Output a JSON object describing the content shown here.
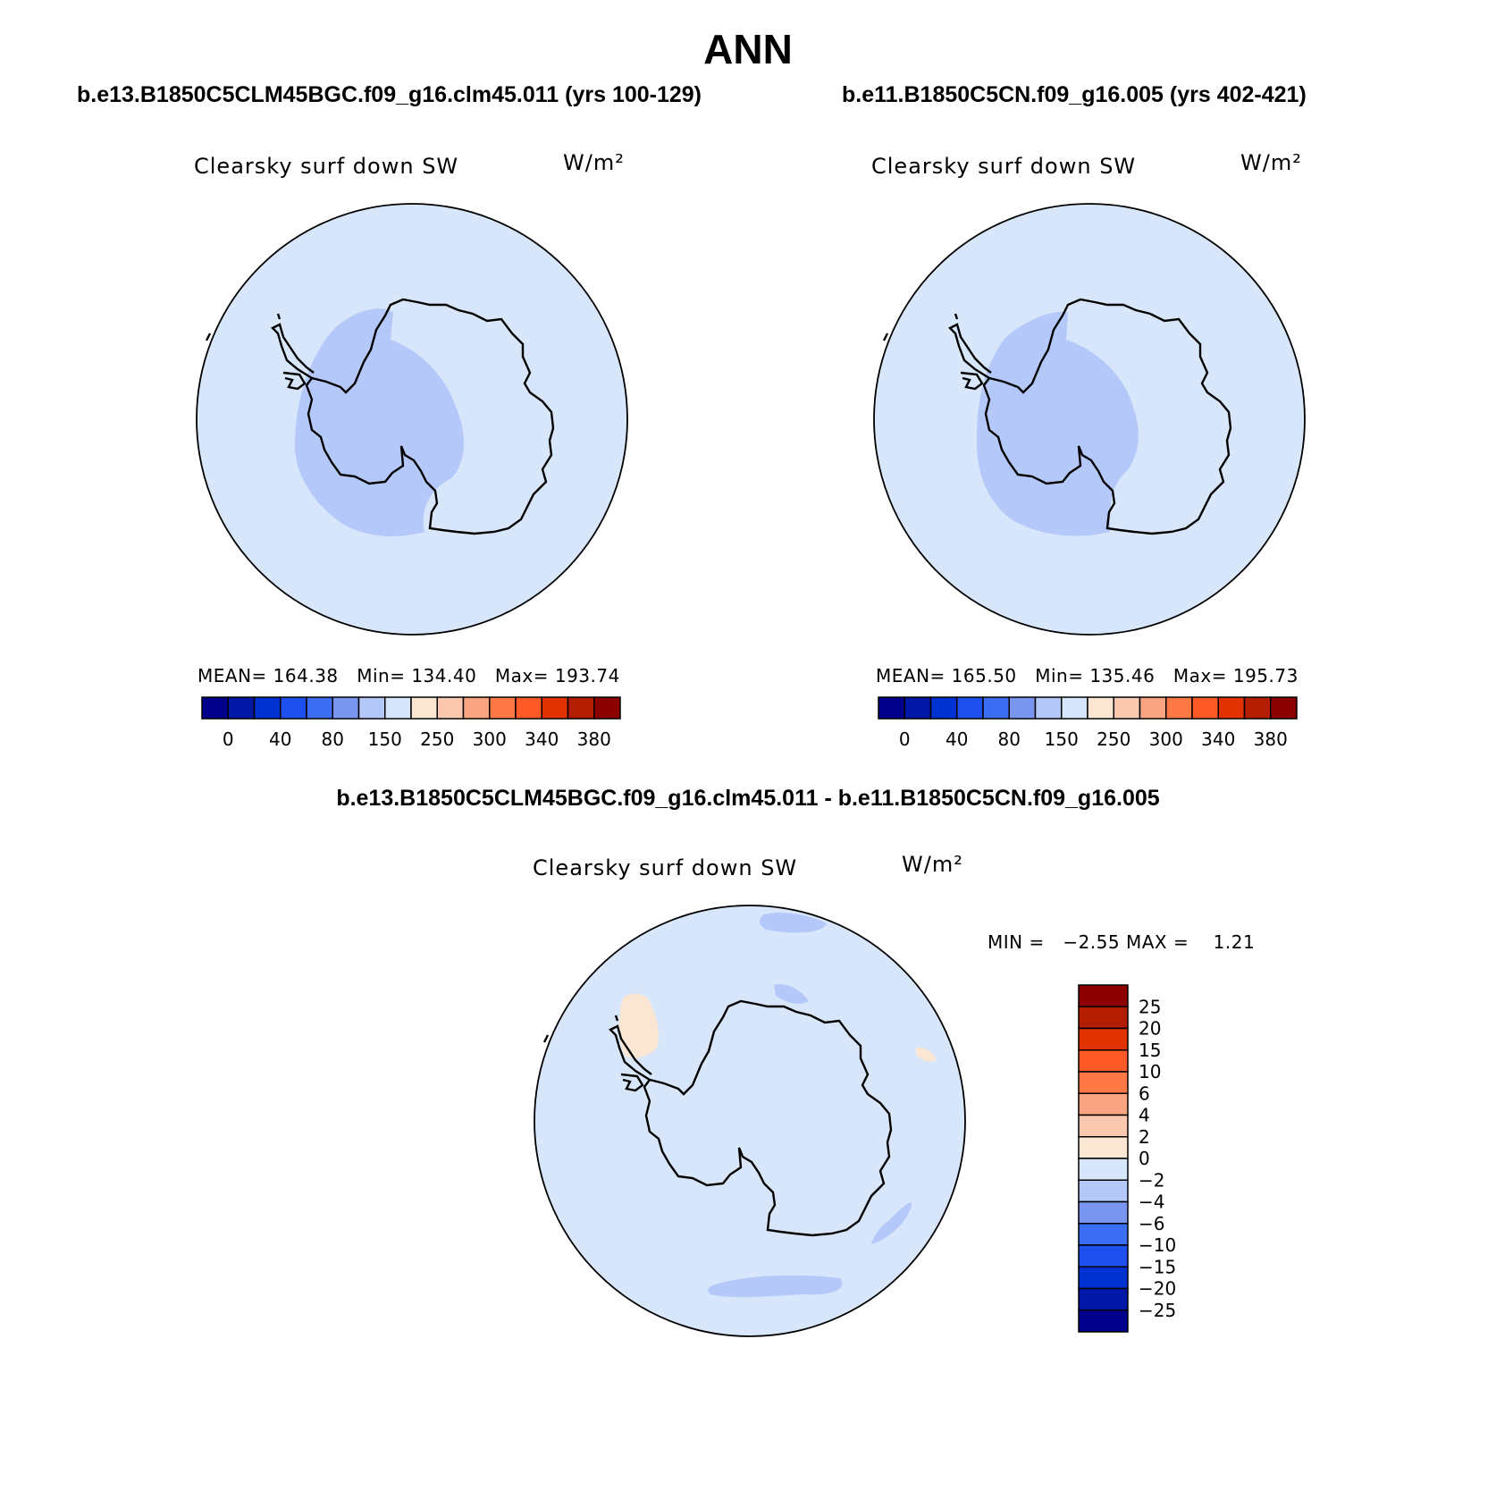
{
  "title": "ANN",
  "case_left": "b.e13.B1850C5CLM45BGC.f09_g16.clm45.011 (yrs 100-129)",
  "case_right": "b.e11.B1850C5CN.f09_g16.005 (yrs 402-421)",
  "diff_title": "b.e13.B1850C5CLM45BGC.f09_g16.clm45.011 - b.e11.B1850C5CN.f09_g16.005",
  "variable": "Clearsky surf down SW",
  "units": "W/m²",
  "panels": [
    {
      "mean_label": "MEAN=",
      "mean": "164.38",
      "min_label": "Min=",
      "min": "134.40",
      "max_label": "Max=",
      "max": "193.74"
    },
    {
      "mean_label": "MEAN=",
      "mean": "165.50",
      "min_label": "Min=",
      "min": "135.46",
      "max_label": "Max=",
      "max": "195.73"
    }
  ],
  "diff_stats": {
    "min_label": "MIN =",
    "min": "−2.55",
    "max_label": "MAX =",
    "max": "1.21"
  },
  "colors": {
    "levels_main": [
      "#00008c",
      "#0018a8",
      "#0032d2",
      "#1e50f0",
      "#3c6ef5",
      "#7896f0",
      "#b4c8fa",
      "#d7e6fa",
      "#fae6d2",
      "#fac8af",
      "#faa582",
      "#ff7846",
      "#ff5a28",
      "#e13200",
      "#b41e00",
      "#8c0000"
    ],
    "ocean": "#d7e6fa",
    "low_band": "#b4c8fa",
    "diff_blue": "#b4c8fa",
    "diff_peach": "#fae6d2"
  },
  "chart_data": {
    "type": "map",
    "projection": "south polar stereographic",
    "panels": [
      {
        "name": "b.e13.B1850C5CLM45BGC.f09_g16.clm45.011 (yrs 100-129)",
        "variable": "Clearsky surf down SW",
        "units": "W/m2",
        "mean": 164.38,
        "min": 134.4,
        "max": 193.74
      },
      {
        "name": "b.e11.B1850C5CN.f09_g16.005 (yrs 402-421)",
        "variable": "Clearsky surf down SW",
        "units": "W/m2",
        "mean": 165.5,
        "min": 135.46,
        "max": 195.73
      },
      {
        "name": "difference",
        "variable": "Clearsky surf down SW",
        "units": "W/m2",
        "min": -2.55,
        "max": 1.21
      }
    ],
    "colorbar_main_ticks": [
      "0",
      "40",
      "80",
      "150",
      "250",
      "300",
      "340",
      "380"
    ],
    "colorbar_diff_ticks": [
      "25",
      "20",
      "15",
      "10",
      "6",
      "4",
      "2",
      "0",
      "−2",
      "−4",
      "−6",
      "−10",
      "−15",
      "−20",
      "−25"
    ]
  }
}
